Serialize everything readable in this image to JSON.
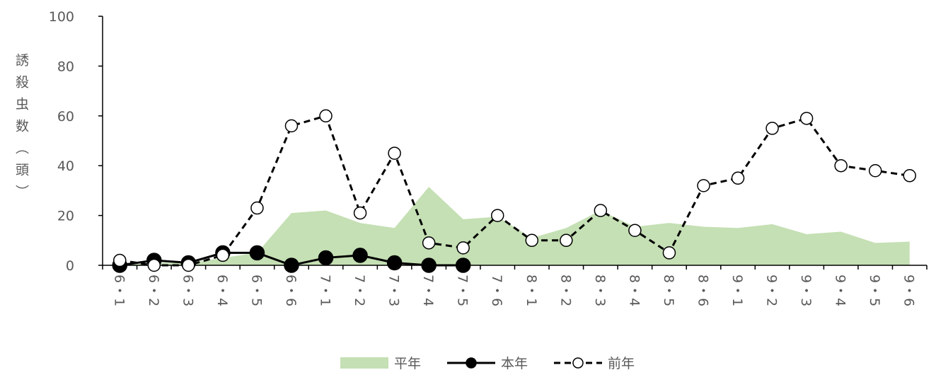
{
  "chart_data": {
    "type": "line",
    "y_label": "誘殺虫数（頭）",
    "categories": [
      "6・1",
      "6・2",
      "6・3",
      "6・4",
      "6・5",
      "6・6",
      "7・1",
      "7・2",
      "7・3",
      "7・4",
      "7・5",
      "7・6",
      "8・1",
      "8・2",
      "8・3",
      "8・4",
      "8・5",
      "8・6",
      "9・1",
      "9・2",
      "9・3",
      "9・4",
      "9・5",
      "9・6"
    ],
    "series": [
      {
        "name": "平年",
        "kind": "area",
        "color": "#c5e0b4",
        "values": [
          0,
          1,
          1,
          3,
          5,
          21,
          22,
          17,
          15,
          31.5,
          18.5,
          19.5,
          11,
          15,
          22,
          15.5,
          17,
          15.5,
          15,
          16.5,
          12.5,
          13.5,
          9,
          9.5
        ]
      },
      {
        "name": "本年",
        "kind": "line",
        "color": "#000000",
        "values": [
          0,
          2,
          1,
          5,
          5,
          0,
          3,
          4,
          1,
          0,
          0,
          null,
          null,
          null,
          null,
          null,
          null,
          null,
          null,
          null,
          null,
          null,
          null,
          null
        ]
      },
      {
        "name": "前年",
        "kind": "dashed",
        "color": "#000000",
        "values": [
          2,
          0,
          0,
          4,
          23,
          56,
          60,
          21,
          45,
          9,
          7,
          20,
          10,
          10,
          22,
          14,
          5,
          32,
          35,
          55,
          59,
          40,
          38,
          36
        ]
      }
    ],
    "ylim": [
      0,
      100
    ],
    "yticks": [
      0,
      20,
      40,
      60,
      80,
      100
    ]
  }
}
